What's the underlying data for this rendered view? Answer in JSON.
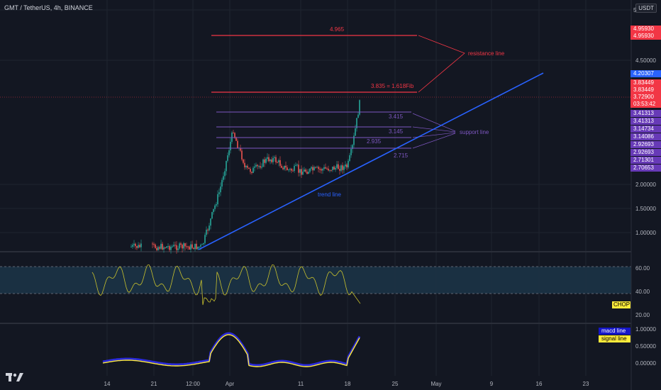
{
  "header": {
    "title": "GMT / TetherUS, 4h, BINANCE",
    "currency": "USDT",
    "logo": "TV"
  },
  "price_axis": {
    "labels": [
      "5",
      "4.50000",
      "2.00000",
      "1.50000",
      "1.00000"
    ]
  },
  "price_tags": [
    {
      "text": "4.95930",
      "color": "#f23645"
    },
    {
      "text": "4.95930",
      "color": "#f23645"
    },
    {
      "text": "4.20307",
      "color": "#2962ff"
    },
    {
      "text": "3.83449",
      "color": "#f23645"
    },
    {
      "text": "3.83449",
      "color": "#f23645"
    },
    {
      "text": "3.72900",
      "color": "#f23645"
    },
    {
      "text": "03:53:42",
      "color": "#f23645"
    },
    {
      "text": "3.41313",
      "color": "#7e57c2"
    },
    {
      "text": "3.41313",
      "color": "#7e57c2"
    },
    {
      "text": "3.14734",
      "color": "#7e57c2"
    },
    {
      "text": "3.14086",
      "color": "#7e57c2"
    },
    {
      "text": "2.92693",
      "color": "#7e57c2"
    },
    {
      "text": "2.92693",
      "color": "#7e57c2"
    },
    {
      "text": "2.71301",
      "color": "#7e57c2"
    },
    {
      "text": "2.70653",
      "color": "#7e57c2"
    }
  ],
  "annotations": {
    "resistance_top": "4.965",
    "resistance_fib": "3.835 = 1.618Fib",
    "resistance_label": "resistance line",
    "support_levels": [
      "3.415",
      "3.145",
      "2.935",
      "2.715"
    ],
    "support_label": "support line",
    "trend_label": "trend line"
  },
  "chop_panel": {
    "axis": [
      "60.00",
      "40.00",
      "20.00"
    ],
    "tag": "CHOP",
    "tag_color": "#ffeb3b"
  },
  "macd_panel": {
    "axis": [
      "1.00000",
      "0.50000",
      "0.00000"
    ],
    "macd_tag": "macd line",
    "signal_tag": "signal line"
  },
  "time_axis": [
    "14",
    "21",
    "12:00",
    "Apr",
    "11",
    "18",
    "25",
    "May",
    "9",
    "16",
    "23"
  ],
  "colors": {
    "background": "#131722",
    "up": "#26a69a",
    "down": "#ef5350",
    "resistance": "#f23645",
    "support": "#7e57c2",
    "trend": "#2962ff",
    "chop": "#c9c22d",
    "macd": "#2a2ad8",
    "signal": "#ffeb3b"
  }
}
